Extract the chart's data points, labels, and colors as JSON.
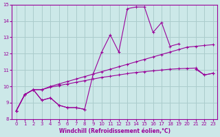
{
  "title": "",
  "xlabel": "Windchill (Refroidissement éolien,°C)",
  "ylabel": "",
  "xlim": [
    -0.5,
    23.5
  ],
  "ylim": [
    8,
    15
  ],
  "yticks": [
    8,
    9,
    10,
    11,
    12,
    13,
    14,
    15
  ],
  "xticks": [
    0,
    1,
    2,
    3,
    4,
    5,
    6,
    7,
    8,
    9,
    10,
    11,
    12,
    13,
    14,
    15,
    16,
    17,
    18,
    19,
    20,
    21,
    22,
    23
  ],
  "bg_color": "#cce8e8",
  "grid_color": "#aacccc",
  "line_color": "#990099",
  "lines": [
    {
      "x": [
        0,
        1,
        2,
        3,
        4,
        5,
        6,
        7,
        8
      ],
      "y": [
        8.5,
        9.5,
        9.8,
        9.15,
        9.3,
        8.85,
        8.7,
        8.7,
        8.6
      ]
    },
    {
      "x": [
        0,
        1,
        2,
        3,
        4,
        5,
        6,
        7,
        8,
        9,
        10,
        11,
        12,
        13,
        14,
        15,
        16,
        17,
        18,
        19,
        20,
        21,
        22,
        23
      ],
      "y": [
        8.5,
        9.5,
        9.8,
        9.8,
        9.95,
        10.05,
        10.15,
        10.25,
        10.35,
        10.45,
        10.55,
        10.62,
        10.7,
        10.78,
        10.85,
        10.9,
        10.95,
        11.0,
        11.05,
        11.08,
        11.1,
        11.12,
        10.7,
        10.8
      ]
    },
    {
      "x": [
        0,
        1,
        2,
        3,
        4,
        5,
        6,
        7,
        8,
        9,
        10,
        11,
        12,
        13,
        14,
        15,
        16,
        17,
        18,
        19,
        20,
        21,
        22,
        23
      ],
      "y": [
        8.5,
        9.5,
        9.8,
        9.8,
        10.0,
        10.15,
        10.3,
        10.45,
        10.6,
        10.75,
        10.9,
        11.05,
        11.2,
        11.35,
        11.5,
        11.65,
        11.8,
        11.95,
        12.1,
        12.25,
        12.4,
        12.45,
        12.5,
        12.55
      ]
    },
    {
      "x": [
        0,
        1,
        2,
        3,
        4,
        5,
        6,
        7,
        8,
        9,
        10,
        11,
        12,
        13,
        14,
        15,
        16,
        17,
        18,
        19,
        20,
        21,
        22,
        23
      ],
      "y": [
        8.5,
        9.5,
        9.8,
        9.15,
        9.3,
        8.85,
        8.7,
        8.7,
        8.6,
        10.75,
        12.1,
        13.15,
        12.1,
        14.75,
        14.85,
        14.85,
        13.3,
        13.9,
        12.45,
        12.6,
        null,
        11.05,
        10.7,
        10.8
      ]
    }
  ]
}
